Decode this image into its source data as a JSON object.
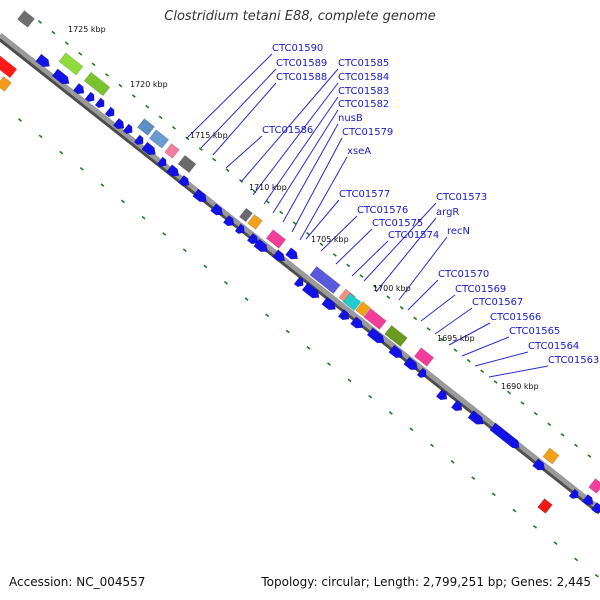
{
  "title": "Clostridium tetani E88, complete genome",
  "footer": {
    "accession": "Accession: NC_004557",
    "topology": "Topology: circular; Length: 2,799,251 bp; Genes: 2,445"
  },
  "colors": {
    "backbone": "#8c8c8c",
    "gene_default": "#1212e6",
    "tick": "#1e7a1e",
    "label": "#1a1acc"
  },
  "scale_labels": [
    "1725 kbp",
    "1720 kbp",
    "1715 kbp",
    "1710 kbp",
    "1705 kbp",
    "1700 kbp",
    "1695 kbp",
    "1690 kbp"
  ],
  "gene_labels": [
    "CTC01590",
    "CTC01589",
    "CTC01588",
    "CTC01586",
    "CTC01585",
    "CTC01584",
    "CTC01583",
    "CTC01582",
    "nusB",
    "CTC01579",
    "xseA",
    "CTC01577",
    "CTC01576",
    "CTC01575",
    "CTC01574",
    "CTC01573",
    "argR",
    "recN",
    "CTC01570",
    "CTC01569",
    "CTC01567",
    "CTC01566",
    "CTC01565",
    "CTC01564",
    "CTC01563"
  ]
}
